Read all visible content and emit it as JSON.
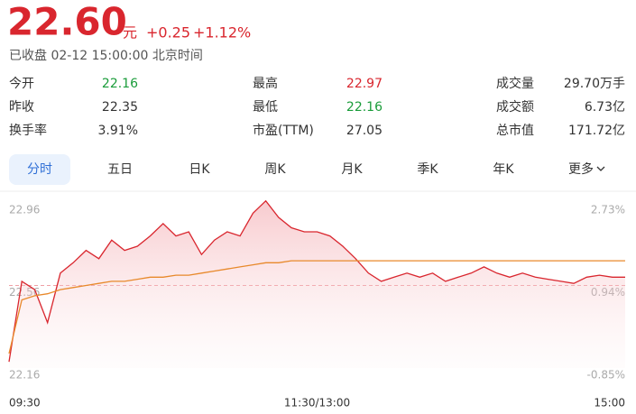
{
  "header": {
    "price": "22.60",
    "unit": "元",
    "change": "+0.25",
    "change_pct": "+1.12%",
    "status": "已收盘 02-12 15:00:00 北京时间"
  },
  "stats": [
    [
      {
        "label": "今开",
        "value": "22.16"
      },
      {
        "label": "最高",
        "value": "22.97"
      },
      {
        "label": "成交量",
        "value": "29.70万手"
      }
    ],
    [
      {
        "label": "昨收",
        "value": "22.35"
      },
      {
        "label": "最低",
        "value": "22.16"
      },
      {
        "label": "成交额",
        "value": "6.73亿"
      }
    ],
    [
      {
        "label": "换手率",
        "value": "3.91%"
      },
      {
        "label": "市盈(TTM)",
        "value": "27.05"
      },
      {
        "label": "总市值",
        "value": "171.72亿"
      }
    ]
  ],
  "tabs": [
    "分时",
    "五日",
    "日K",
    "周K",
    "月K",
    "季K",
    "年K",
    "更多"
  ],
  "chart_data": {
    "type": "line",
    "x": [
      0,
      5,
      10,
      15,
      20,
      25,
      30,
      35,
      40,
      45,
      50,
      55,
      60,
      65,
      70,
      75,
      80,
      85,
      90,
      95,
      100,
      105,
      110,
      115,
      120,
      125,
      130,
      135,
      140,
      145,
      150,
      155,
      160,
      165,
      170,
      175,
      180,
      185,
      190,
      195,
      200,
      205,
      210,
      215,
      220,
      225,
      230,
      235,
      240
    ],
    "xlim": [
      0,
      240
    ],
    "xticks": [
      {
        "value": 0,
        "label": "09:30"
      },
      {
        "value": 120,
        "label": "11:30/13:00"
      },
      {
        "value": 240,
        "label": "15:00"
      }
    ],
    "ylim": [
      22.16,
      22.96
    ],
    "yticks": [
      22.16,
      22.56,
      22.96
    ],
    "y2lim": [
      -0.85,
      2.73
    ],
    "y2ticks": [
      {
        "value": -0.85,
        "label": "-0.85%"
      },
      {
        "value": 0.94,
        "label": "0.94%"
      },
      {
        "value": 2.73,
        "label": "2.73%"
      }
    ],
    "series": [
      {
        "color": "#d9262e",
        "values": [
          22.19,
          22.58,
          22.54,
          22.38,
          22.62,
          22.67,
          22.73,
          22.69,
          22.78,
          22.73,
          22.75,
          22.8,
          22.86,
          22.8,
          22.82,
          22.71,
          22.78,
          22.82,
          22.8,
          22.91,
          22.97,
          22.89,
          22.84,
          22.82,
          22.82,
          22.8,
          22.75,
          22.69,
          22.62,
          22.58,
          22.6,
          22.62,
          22.6,
          22.62,
          22.58,
          22.6,
          22.62,
          22.65,
          22.62,
          22.6,
          22.62,
          22.6,
          22.59,
          22.58,
          22.57,
          22.6,
          22.61,
          22.6,
          22.6
        ]
      },
      {
        "color": "#e8892b",
        "values": [
          22.23,
          22.49,
          22.51,
          22.52,
          22.54,
          22.55,
          22.56,
          22.57,
          22.58,
          22.58,
          22.59,
          22.6,
          22.6,
          22.61,
          22.61,
          22.62,
          22.63,
          22.64,
          22.65,
          22.66,
          22.67,
          22.67,
          22.68,
          22.68,
          22.68,
          22.68,
          22.68,
          22.68,
          22.68,
          22.68,
          22.68,
          22.68,
          22.68,
          22.68,
          22.68,
          22.68,
          22.68,
          22.68,
          22.68,
          22.68,
          22.68,
          22.68,
          22.68,
          22.68,
          22.68,
          22.68,
          22.68,
          22.68,
          22.68
        ]
      }
    ]
  }
}
